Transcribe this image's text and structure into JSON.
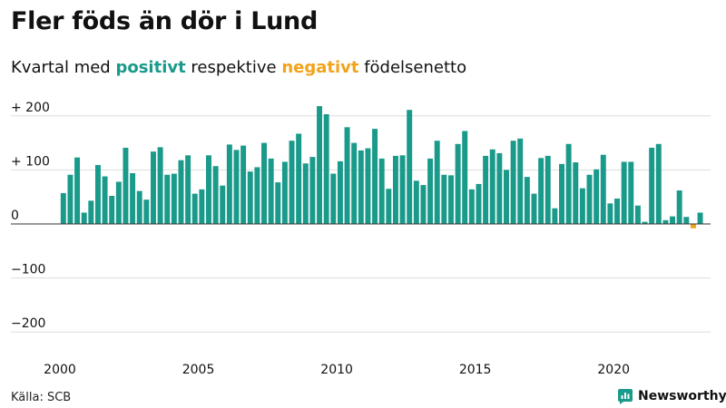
{
  "title": "Fler föds än dör i Lund",
  "subtitle": {
    "prefix": "Kvartal med ",
    "positive": "positivt",
    "middle": " respektive ",
    "negative": "negativt",
    "suffix": " födelsenetto"
  },
  "source": "Källa: SCB",
  "brand": {
    "name": "Newsworthy",
    "logo_icon": "newsworthy-bar-chart-icon"
  },
  "colors": {
    "positive": "#1a9a8a",
    "negative": "#f2a319",
    "grid": "#dddddd",
    "zero_line": "#333333",
    "text": "#111111"
  },
  "chart_data": {
    "type": "bar",
    "title": "Fler föds än dör i Lund",
    "subtitle": "Kvartal med positivt respektive negativt födelsenetto",
    "xlabel": "",
    "ylabel": "",
    "ylim": [
      -220,
      220
    ],
    "yticks": [
      {
        "value": 200,
        "label": "+ 200"
      },
      {
        "value": 100,
        "label": "+ 100"
      },
      {
        "value": 0,
        "label": "0"
      },
      {
        "value": -100,
        "label": "−100"
      },
      {
        "value": -200,
        "label": "−200"
      }
    ],
    "xticks": [
      {
        "value": 2000,
        "label": "2000"
      },
      {
        "value": 2005,
        "label": "2005"
      },
      {
        "value": 2010,
        "label": "2010"
      },
      {
        "value": 2015,
        "label": "2015"
      },
      {
        "value": 2020,
        "label": "2020"
      }
    ],
    "xlim": [
      2000,
      2023.5
    ],
    "start_year": 2000,
    "periods_per_year": 4,
    "grid": true,
    "values": [
      57,
      91,
      123,
      21,
      43,
      109,
      88,
      52,
      78,
      141,
      94,
      61,
      45,
      134,
      142,
      91,
      93,
      118,
      127,
      56,
      64,
      127,
      107,
      71,
      147,
      137,
      145,
      97,
      105,
      150,
      121,
      77,
      115,
      154,
      167,
      112,
      124,
      218,
      203,
      93,
      116,
      179,
      150,
      136,
      140,
      176,
      121,
      65,
      126,
      127,
      211,
      80,
      72,
      121,
      154,
      91,
      90,
      148,
      172,
      64,
      74,
      126,
      138,
      131,
      100,
      154,
      158,
      87,
      56,
      122,
      126,
      29,
      111,
      148,
      114,
      66,
      91,
      101,
      128,
      38,
      47,
      115,
      115,
      34,
      4,
      141,
      148,
      7,
      14,
      62,
      13,
      -8,
      21
    ]
  }
}
